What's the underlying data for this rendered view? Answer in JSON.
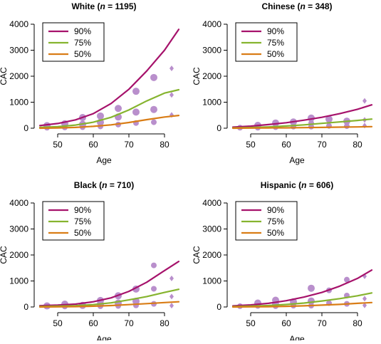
{
  "colors": {
    "p90": "#a6126b",
    "p75": "#86b42f",
    "p50": "#d97d16",
    "point": "#b98fcc",
    "axis": "#000000"
  },
  "chart_data": [
    {
      "type": "scatter",
      "title": {
        "prefix": "White (",
        "n_italic": "n",
        "suffix": " = 1195)"
      },
      "xlabel": "Age",
      "ylabel": "CAC",
      "xlim": [
        45,
        85
      ],
      "ylim": [
        0,
        4000
      ],
      "xticks": [
        "50",
        "60",
        "70",
        "80"
      ],
      "yticks": [
        "0",
        "1000",
        "2000",
        "3000",
        "4000"
      ],
      "legend": {
        "position": "top-left",
        "entries": [
          "90%",
          "75%",
          "50%"
        ]
      },
      "curves": {
        "p90": [
          [
            45,
            100
          ],
          [
            50,
            180
          ],
          [
            55,
            320
          ],
          [
            60,
            560
          ],
          [
            65,
            950
          ],
          [
            70,
            1500
          ],
          [
            75,
            2200
          ],
          [
            80,
            3000
          ],
          [
            84,
            3800
          ]
        ],
        "p75": [
          [
            45,
            30
          ],
          [
            50,
            60
          ],
          [
            55,
            120
          ],
          [
            60,
            230
          ],
          [
            65,
            420
          ],
          [
            70,
            700
          ],
          [
            75,
            1050
          ],
          [
            80,
            1350
          ],
          [
            84,
            1480
          ]
        ],
        "p50": [
          [
            45,
            0
          ],
          [
            50,
            10
          ],
          [
            55,
            30
          ],
          [
            60,
            70
          ],
          [
            65,
            130
          ],
          [
            70,
            220
          ],
          [
            75,
            330
          ],
          [
            80,
            430
          ],
          [
            84,
            490
          ]
        ]
      },
      "points": [
        {
          "x": 47,
          "y": 100,
          "size": 5,
          "shape": "circle"
        },
        {
          "x": 47,
          "y": 20,
          "size": 4,
          "shape": "circle"
        },
        {
          "x": 52,
          "y": 170,
          "size": 5,
          "shape": "circle"
        },
        {
          "x": 52,
          "y": 30,
          "size": 4,
          "shape": "circle"
        },
        {
          "x": 57,
          "y": 410,
          "size": 5,
          "shape": "circle"
        },
        {
          "x": 57,
          "y": 150,
          "size": 5,
          "shape": "circle"
        },
        {
          "x": 57,
          "y": 40,
          "size": 4,
          "shape": "circle"
        },
        {
          "x": 62,
          "y": 470,
          "size": 5,
          "shape": "circle"
        },
        {
          "x": 62,
          "y": 230,
          "size": 5,
          "shape": "circle"
        },
        {
          "x": 62,
          "y": 70,
          "size": 4,
          "shape": "circle"
        },
        {
          "x": 67,
          "y": 760,
          "size": 5,
          "shape": "circle"
        },
        {
          "x": 67,
          "y": 430,
          "size": 5,
          "shape": "circle"
        },
        {
          "x": 67,
          "y": 140,
          "size": 4,
          "shape": "circle"
        },
        {
          "x": 72,
          "y": 1420,
          "size": 5,
          "shape": "circle"
        },
        {
          "x": 72,
          "y": 620,
          "size": 5,
          "shape": "circle"
        },
        {
          "x": 72,
          "y": 200,
          "size": 4,
          "shape": "circle"
        },
        {
          "x": 77,
          "y": 1950,
          "size": 5,
          "shape": "circle"
        },
        {
          "x": 77,
          "y": 720,
          "size": 5,
          "shape": "circle"
        },
        {
          "x": 77,
          "y": 230,
          "size": 4,
          "shape": "circle"
        },
        {
          "x": 82,
          "y": 2300,
          "size": 3,
          "shape": "diamond"
        },
        {
          "x": 82,
          "y": 1280,
          "size": 3,
          "shape": "diamond"
        },
        {
          "x": 82,
          "y": 510,
          "size": 3,
          "shape": "diamond"
        }
      ]
    },
    {
      "type": "scatter",
      "title": {
        "prefix": "Chinese (",
        "n_italic": "n",
        "suffix": " = 348)"
      },
      "xlabel": "Age",
      "ylabel": "CAC",
      "xlim": [
        45,
        85
      ],
      "ylim": [
        0,
        4000
      ],
      "xticks": [
        "50",
        "60",
        "70",
        "80"
      ],
      "yticks": [
        "0",
        "1000",
        "2000",
        "3000",
        "4000"
      ],
      "legend": {
        "position": "top-left",
        "entries": [
          "90%",
          "75%",
          "50%"
        ]
      },
      "curves": {
        "p90": [
          [
            45,
            40
          ],
          [
            50,
            80
          ],
          [
            55,
            140
          ],
          [
            60,
            210
          ],
          [
            65,
            310
          ],
          [
            70,
            420
          ],
          [
            75,
            560
          ],
          [
            80,
            730
          ],
          [
            84,
            900
          ]
        ],
        "p75": [
          [
            45,
            10
          ],
          [
            50,
            25
          ],
          [
            55,
            50
          ],
          [
            60,
            85
          ],
          [
            65,
            130
          ],
          [
            70,
            185
          ],
          [
            75,
            240
          ],
          [
            80,
            300
          ],
          [
            84,
            350
          ]
        ],
        "p50": [
          [
            45,
            0
          ],
          [
            50,
            5
          ],
          [
            55,
            10
          ],
          [
            60,
            15
          ],
          [
            65,
            22
          ],
          [
            70,
            30
          ],
          [
            75,
            40
          ],
          [
            80,
            50
          ],
          [
            84,
            60
          ]
        ]
      },
      "points": [
        {
          "x": 47,
          "y": 20,
          "size": 4,
          "shape": "circle"
        },
        {
          "x": 52,
          "y": 110,
          "size": 5,
          "shape": "circle"
        },
        {
          "x": 52,
          "y": 20,
          "size": 4,
          "shape": "circle"
        },
        {
          "x": 57,
          "y": 200,
          "size": 5,
          "shape": "circle"
        },
        {
          "x": 57,
          "y": 40,
          "size": 4,
          "shape": "circle"
        },
        {
          "x": 62,
          "y": 240,
          "size": 5,
          "shape": "circle"
        },
        {
          "x": 62,
          "y": 60,
          "size": 4,
          "shape": "circle"
        },
        {
          "x": 67,
          "y": 390,
          "size": 5,
          "shape": "circle"
        },
        {
          "x": 67,
          "y": 200,
          "size": 4,
          "shape": "circle"
        },
        {
          "x": 67,
          "y": 60,
          "size": 4,
          "shape": "circle"
        },
        {
          "x": 72,
          "y": 350,
          "size": 5,
          "shape": "circle"
        },
        {
          "x": 72,
          "y": 90,
          "size": 4,
          "shape": "circle"
        },
        {
          "x": 77,
          "y": 270,
          "size": 5,
          "shape": "circle"
        },
        {
          "x": 77,
          "y": 80,
          "size": 4,
          "shape": "circle"
        },
        {
          "x": 82,
          "y": 1050,
          "size": 3,
          "shape": "diamond"
        },
        {
          "x": 82,
          "y": 320,
          "size": 3,
          "shape": "diamond"
        },
        {
          "x": 82,
          "y": 100,
          "size": 3,
          "shape": "diamond"
        }
      ]
    },
    {
      "type": "scatter",
      "title": {
        "prefix": "Black (",
        "n_italic": "n",
        "suffix": " = 710)"
      },
      "xlabel": "Age",
      "ylabel": "CAC",
      "xlim": [
        45,
        85
      ],
      "ylim": [
        0,
        4000
      ],
      "xticks": [
        "50",
        "60",
        "70",
        "80"
      ],
      "yticks": [
        "0",
        "1000",
        "2000",
        "3000",
        "4000"
      ],
      "legend": {
        "position": "top-left",
        "entries": [
          "90%",
          "75%",
          "50%"
        ]
      },
      "curves": {
        "p90": [
          [
            45,
            50
          ],
          [
            50,
            70
          ],
          [
            55,
            110
          ],
          [
            60,
            200
          ],
          [
            65,
            350
          ],
          [
            70,
            600
          ],
          [
            75,
            950
          ],
          [
            80,
            1400
          ],
          [
            84,
            1750
          ]
        ],
        "p75": [
          [
            45,
            20
          ],
          [
            50,
            30
          ],
          [
            55,
            50
          ],
          [
            60,
            90
          ],
          [
            65,
            160
          ],
          [
            70,
            270
          ],
          [
            75,
            400
          ],
          [
            80,
            560
          ],
          [
            84,
            680
          ]
        ],
        "p50": [
          [
            45,
            0
          ],
          [
            50,
            5
          ],
          [
            55,
            15
          ],
          [
            60,
            30
          ],
          [
            65,
            55
          ],
          [
            70,
            90
          ],
          [
            75,
            130
          ],
          [
            80,
            170
          ],
          [
            84,
            200
          ]
        ]
      },
      "points": [
        {
          "x": 47,
          "y": 40,
          "size": 5,
          "shape": "circle"
        },
        {
          "x": 52,
          "y": 110,
          "size": 5,
          "shape": "circle"
        },
        {
          "x": 52,
          "y": 20,
          "size": 4,
          "shape": "circle"
        },
        {
          "x": 57,
          "y": 60,
          "size": 5,
          "shape": "circle"
        },
        {
          "x": 62,
          "y": 250,
          "size": 5,
          "shape": "circle"
        },
        {
          "x": 62,
          "y": 110,
          "size": 5,
          "shape": "circle"
        },
        {
          "x": 62,
          "y": 30,
          "size": 4,
          "shape": "circle"
        },
        {
          "x": 67,
          "y": 430,
          "size": 5,
          "shape": "circle"
        },
        {
          "x": 67,
          "y": 150,
          "size": 5,
          "shape": "circle"
        },
        {
          "x": 67,
          "y": 40,
          "size": 4,
          "shape": "circle"
        },
        {
          "x": 72,
          "y": 690,
          "size": 5,
          "shape": "circle"
        },
        {
          "x": 72,
          "y": 220,
          "size": 5,
          "shape": "circle"
        },
        {
          "x": 72,
          "y": 60,
          "size": 4,
          "shape": "circle"
        },
        {
          "x": 77,
          "y": 1600,
          "size": 4,
          "shape": "circle"
        },
        {
          "x": 77,
          "y": 700,
          "size": 4,
          "shape": "circle"
        },
        {
          "x": 77,
          "y": 120,
          "size": 4,
          "shape": "circle"
        },
        {
          "x": 82,
          "y": 1100,
          "size": 3,
          "shape": "diamond"
        },
        {
          "x": 82,
          "y": 400,
          "size": 3,
          "shape": "diamond"
        },
        {
          "x": 82,
          "y": 50,
          "size": 3,
          "shape": "diamond"
        }
      ]
    },
    {
      "type": "scatter",
      "title": {
        "prefix": "Hispanic (",
        "n_italic": "n",
        "suffix": " = 606)"
      },
      "xlabel": "Age",
      "ylabel": "CAC",
      "xlim": [
        45,
        85
      ],
      "ylim": [
        0,
        4000
      ],
      "xticks": [
        "50",
        "60",
        "70",
        "80"
      ],
      "yticks": [
        "0",
        "1000",
        "2000",
        "3000",
        "4000"
      ],
      "legend": {
        "position": "top-left",
        "entries": [
          "90%",
          "75%",
          "50%"
        ]
      },
      "curves": {
        "p90": [
          [
            45,
            40
          ],
          [
            50,
            80
          ],
          [
            55,
            140
          ],
          [
            60,
            240
          ],
          [
            65,
            380
          ],
          [
            70,
            560
          ],
          [
            75,
            800
          ],
          [
            80,
            1100
          ],
          [
            84,
            1420
          ]
        ],
        "p75": [
          [
            45,
            15
          ],
          [
            50,
            30
          ],
          [
            55,
            55
          ],
          [
            60,
            95
          ],
          [
            65,
            150
          ],
          [
            70,
            230
          ],
          [
            75,
            320
          ],
          [
            80,
            430
          ],
          [
            84,
            540
          ]
        ],
        "p50": [
          [
            45,
            0
          ],
          [
            50,
            5
          ],
          [
            55,
            12
          ],
          [
            60,
            25
          ],
          [
            65,
            45
          ],
          [
            70,
            70
          ],
          [
            75,
            100
          ],
          [
            80,
            140
          ],
          [
            84,
            170
          ]
        ]
      },
      "points": [
        {
          "x": 47,
          "y": 30,
          "size": 4,
          "shape": "circle"
        },
        {
          "x": 52,
          "y": 150,
          "size": 5,
          "shape": "circle"
        },
        {
          "x": 52,
          "y": 40,
          "size": 4,
          "shape": "circle"
        },
        {
          "x": 57,
          "y": 260,
          "size": 5,
          "shape": "circle"
        },
        {
          "x": 57,
          "y": 110,
          "size": 5,
          "shape": "circle"
        },
        {
          "x": 57,
          "y": 30,
          "size": 4,
          "shape": "circle"
        },
        {
          "x": 62,
          "y": 200,
          "size": 5,
          "shape": "circle"
        },
        {
          "x": 62,
          "y": 50,
          "size": 4,
          "shape": "circle"
        },
        {
          "x": 67,
          "y": 720,
          "size": 5,
          "shape": "circle"
        },
        {
          "x": 67,
          "y": 230,
          "size": 5,
          "shape": "circle"
        },
        {
          "x": 67,
          "y": 50,
          "size": 4,
          "shape": "circle"
        },
        {
          "x": 72,
          "y": 640,
          "size": 4,
          "shape": "circle"
        },
        {
          "x": 72,
          "y": 150,
          "size": 4,
          "shape": "circle"
        },
        {
          "x": 77,
          "y": 1050,
          "size": 4,
          "shape": "circle"
        },
        {
          "x": 77,
          "y": 440,
          "size": 4,
          "shape": "circle"
        },
        {
          "x": 77,
          "y": 120,
          "size": 4,
          "shape": "circle"
        },
        {
          "x": 82,
          "y": 1180,
          "size": 3,
          "shape": "diamond"
        },
        {
          "x": 82,
          "y": 320,
          "size": 3,
          "shape": "diamond"
        },
        {
          "x": 82,
          "y": 60,
          "size": 3,
          "shape": "diamond"
        }
      ]
    }
  ]
}
